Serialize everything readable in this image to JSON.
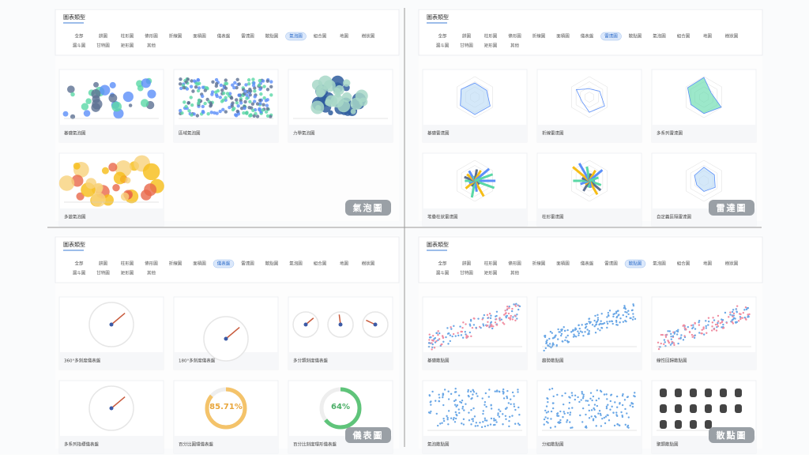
{
  "panels": [
    {
      "title": "圖表類型",
      "tabs": [
        "全部",
        "餅圖",
        "柱形圖",
        "條形圖",
        "折線圖",
        "面積圖",
        "儀表盤",
        "雷達圖",
        "散點圖",
        "氣泡圖",
        "組合圖",
        "地圖",
        "樹狀圖",
        "漏斗圖",
        "甘特圖",
        "矩形圖",
        "其他"
      ],
      "active": 9,
      "cards": [
        "基礎氣泡圖",
        "區域氣泡圖",
        "力學氣泡圖",
        "多變氣泡圖"
      ],
      "badge": "氣泡圖"
    },
    {
      "title": "圖表類型",
      "tabs": [
        "全部",
        "餅圖",
        "柱形圖",
        "條形圖",
        "折線圖",
        "面積圖",
        "儀表盤",
        "雷達圖",
        "散點圖",
        "氣泡圖",
        "組合圖",
        "地圖",
        "樹狀圖",
        "漏斗圖",
        "甘特圖",
        "矩形圖",
        "其他"
      ],
      "active": 7,
      "cards": [
        "基礎雷達圖",
        "折線雷達圖",
        "多系列雷達圖",
        "堆疊柱狀雷達圖",
        "柱形雷達圖",
        "自定義區隔雷達圖"
      ],
      "badge": "雷達圖"
    },
    {
      "title": "圖表類型",
      "tabs": [
        "全部",
        "餅圖",
        "柱形圖",
        "條形圖",
        "折線圖",
        "面積圖",
        "儀表盤",
        "雷達圖",
        "散點圖",
        "氣泡圖",
        "組合圖",
        "地圖",
        "樹狀圖",
        "漏斗圖",
        "甘特圖",
        "矩形圖",
        "其他"
      ],
      "active": 6,
      "cards": [
        "360°多刻度儀表盤",
        "180°多刻度儀表盤",
        "多分類刻度儀表盤",
        "多系列指標儀表盤",
        "百分比圓環儀表盤",
        "百分比刻度環形儀表盤"
      ],
      "badge": "儀表圖",
      "gauge_labels": [
        "85.71%",
        "64%"
      ]
    },
    {
      "title": "圖表類型",
      "tabs": [
        "全部",
        "餅圖",
        "柱形圖",
        "條形圖",
        "折線圖",
        "面積圖",
        "儀表盤",
        "雷達圖",
        "散點圖",
        "氣泡圖",
        "組合圖",
        "地圖",
        "樹狀圖",
        "漏斗圖",
        "甘特圖",
        "矩形圖",
        "其他"
      ],
      "active": 8,
      "cards": [
        "基礎散點圖",
        "趨勢散點圖",
        "線性回歸散點圖",
        "氣泡散點圖",
        "分組散點圖",
        "聚類散點圖"
      ],
      "badge": "散點圖"
    }
  ]
}
